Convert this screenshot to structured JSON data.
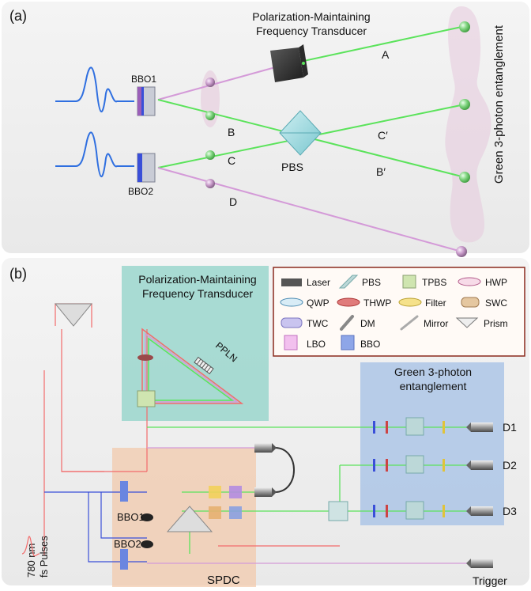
{
  "panel_a": {
    "tag": "(a)",
    "transducer_title_1": "Polarization-Maintaining",
    "transducer_title_2": "Frequency Transducer",
    "side_label": "Green 3-photon entanglement",
    "bbo1": "BBO1",
    "bbo2": "BBO2",
    "pbs": "PBS",
    "beam_a": "A",
    "beam_b": "B",
    "beam_c": "C",
    "beam_d": "D",
    "beam_c_prime": "C′",
    "beam_b_prime": "B′"
  },
  "panel_b": {
    "tag": "(b)",
    "transducer_title_1": "Polarization-Maintaining",
    "transducer_title_2": "Frequency Transducer",
    "green_title_1": "Green 3-photon",
    "green_title_2": "entanglement",
    "ppln": "PPLN",
    "bbo1": "BBO1",
    "bbo2": "BBO2",
    "spdc": "SPDC",
    "pump_1": "780 nm",
    "pump_2": "fs Pulses",
    "d1": "D1",
    "d2": "D2",
    "d3": "D3",
    "trigger": "Trigger"
  },
  "legend": {
    "laser": "Laser",
    "pbs": "PBS",
    "tpbs": "TPBS",
    "hwp": "HWP",
    "qwp": "QWP",
    "thwp": "THWP",
    "filter": "Filter",
    "swc": "SWC",
    "twc": "TWC",
    "dm": "DM",
    "mirror": "Mirror",
    "prism": "Prism",
    "lbo": "LBO",
    "bbo": "BBO"
  },
  "colors": {
    "green_beam": "#5be35b",
    "pink_beam": "#d49ad8",
    "red_beam": "#f26b6b",
    "blue_beam": "#3a4fd8",
    "pulse": "#2f6fe0",
    "transducer_bg": "#8fd3c8",
    "spdc_bg": "#f2c8a8",
    "entangle_bg": "#a9c3e6",
    "legend_border": "#8a2a1e"
  }
}
